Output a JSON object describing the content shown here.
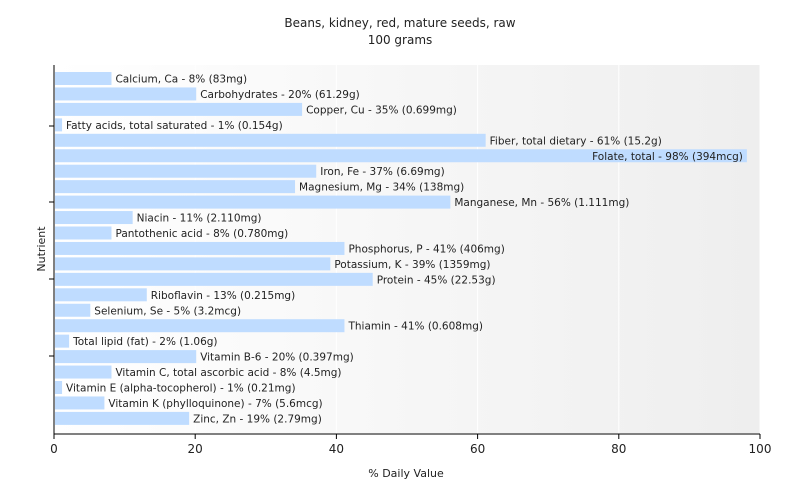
{
  "chart_data": {
    "type": "bar",
    "orientation": "horizontal",
    "title": "Beans, kidney, red, mature seeds, raw",
    "subtitle": "100 grams",
    "xlabel": "% Daily Value",
    "ylabel": "Nutrient",
    "xlim": [
      0,
      100
    ],
    "xticks": [
      0,
      20,
      40,
      60,
      80,
      100
    ],
    "grid": true,
    "colors": {
      "bar": "#bfdcff",
      "plot_bg_left": "#ffffff",
      "plot_bg_right": "#eeeeee",
      "grid": "#ffffff",
      "axis": "#000000"
    },
    "bars": [
      {
        "label": "Calcium, Ca - 8% (83mg)",
        "value": 8
      },
      {
        "label": "Carbohydrates - 20% (61.29g)",
        "value": 20
      },
      {
        "label": "Copper, Cu - 35% (0.699mg)",
        "value": 35
      },
      {
        "label": "Fatty acids, total saturated - 1% (0.154g)",
        "value": 1
      },
      {
        "label": "Fiber, total dietary - 61% (15.2g)",
        "value": 61
      },
      {
        "label": "Folate, total - 98% (394mcg)",
        "value": 98
      },
      {
        "label": "Iron, Fe - 37% (6.69mg)",
        "value": 37
      },
      {
        "label": "Magnesium, Mg - 34% (138mg)",
        "value": 34
      },
      {
        "label": "Manganese, Mn - 56% (1.111mg)",
        "value": 56
      },
      {
        "label": "Niacin - 11% (2.110mg)",
        "value": 11
      },
      {
        "label": "Pantothenic acid - 8% (0.780mg)",
        "value": 8
      },
      {
        "label": "Phosphorus, P - 41% (406mg)",
        "value": 41
      },
      {
        "label": "Potassium, K - 39% (1359mg)",
        "value": 39
      },
      {
        "label": "Protein - 45% (22.53g)",
        "value": 45
      },
      {
        "label": "Riboflavin - 13% (0.215mg)",
        "value": 13
      },
      {
        "label": "Selenium, Se - 5% (3.2mcg)",
        "value": 5
      },
      {
        "label": "Thiamin - 41% (0.608mg)",
        "value": 41
      },
      {
        "label": "Total lipid (fat) - 2% (1.06g)",
        "value": 2
      },
      {
        "label": "Vitamin B-6 - 20% (0.397mg)",
        "value": 20
      },
      {
        "label": "Vitamin C, total ascorbic acid - 8% (4.5mg)",
        "value": 8
      },
      {
        "label": "Vitamin E (alpha-tocopherol) - 1% (0.21mg)",
        "value": 1
      },
      {
        "label": "Vitamin K (phylloquinone) - 7% (5.6mcg)",
        "value": 7
      },
      {
        "label": "Zinc, Zn - 19% (2.79mg)",
        "value": 19
      }
    ]
  }
}
